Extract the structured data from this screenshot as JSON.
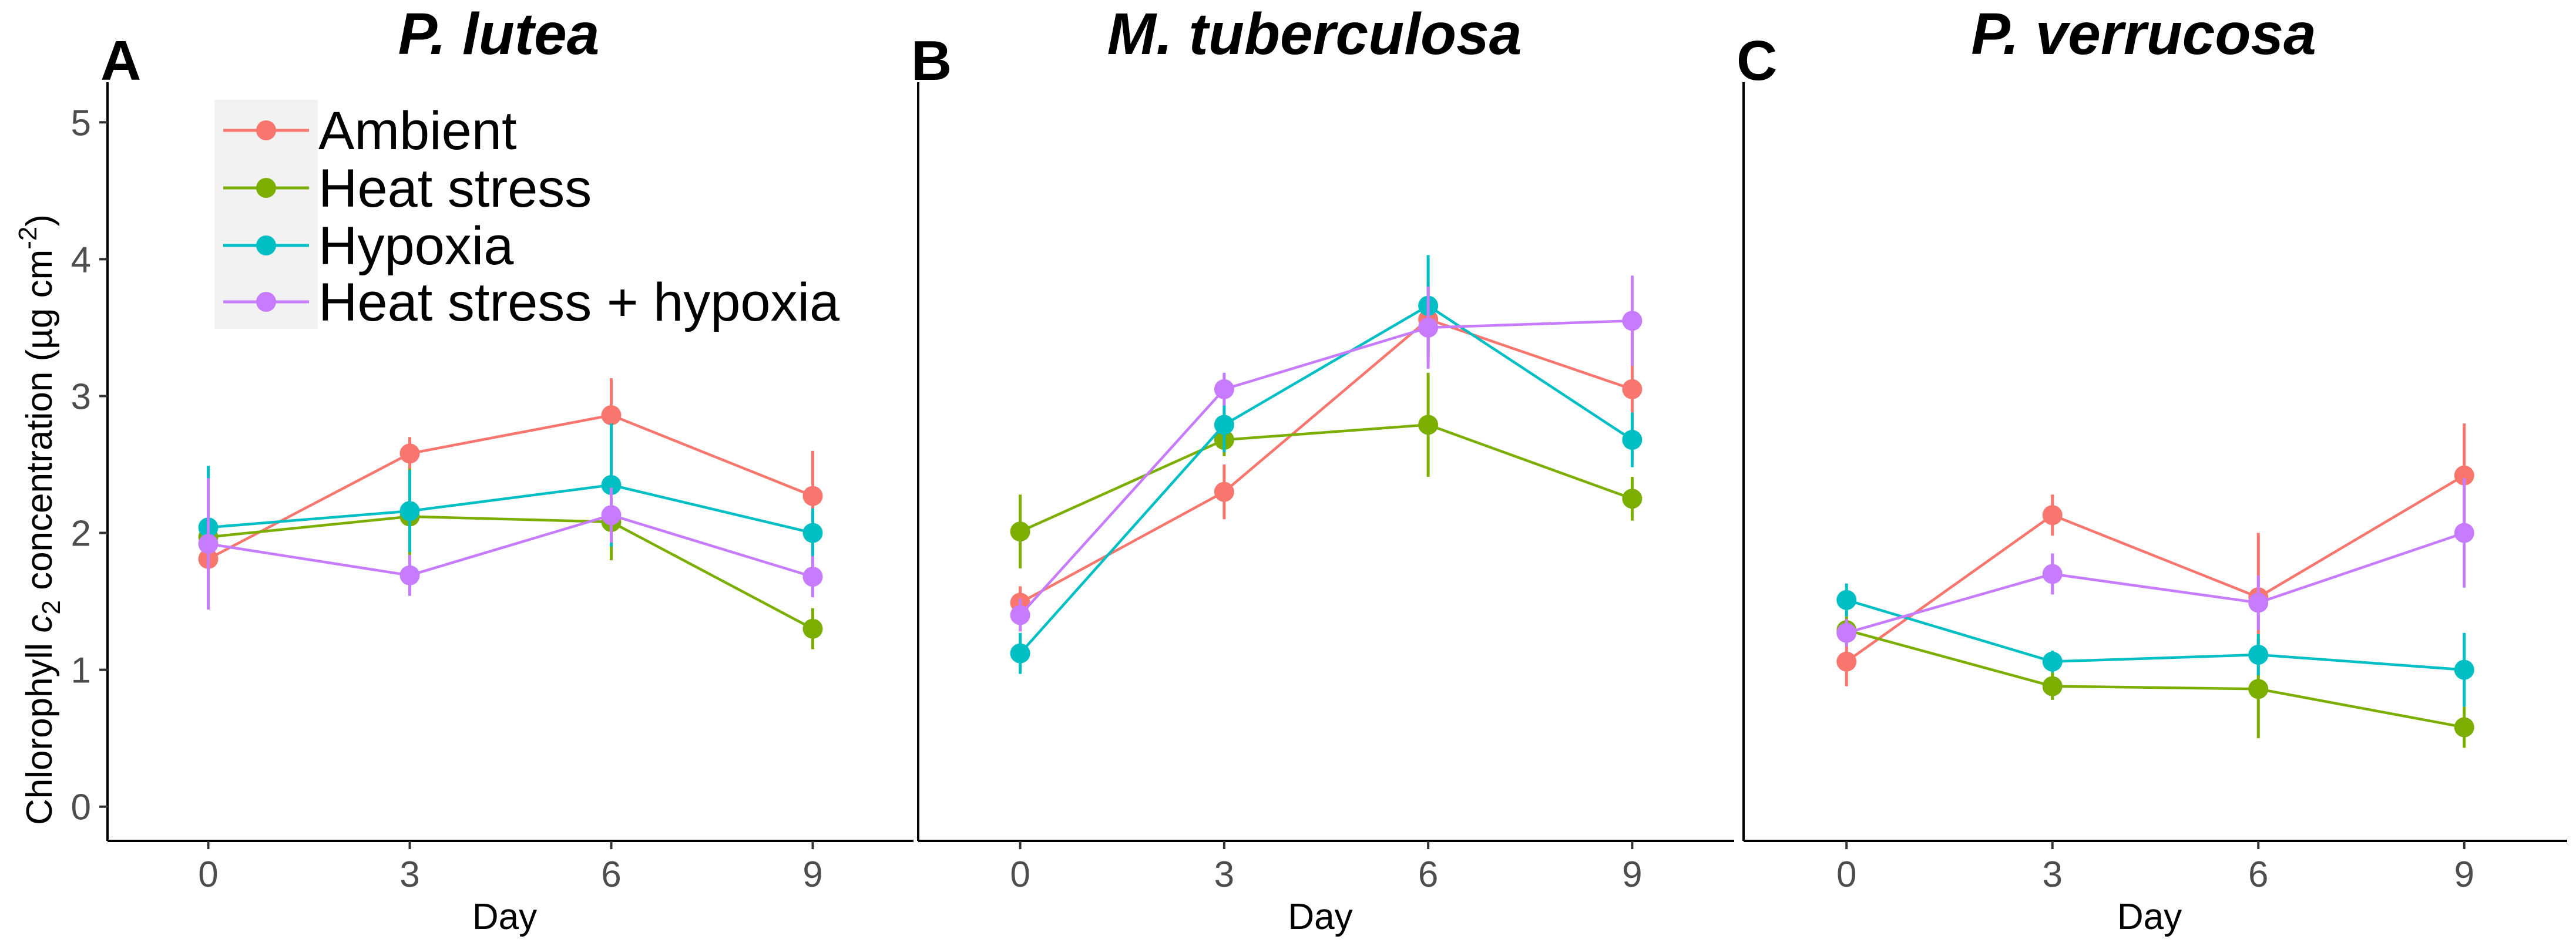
{
  "chart_data": {
    "type": "line",
    "ylabel_text": "Chlorophyll ",
    "ylabel_italic": "c",
    "ylabel_sub": "2",
    "ylabel_tail": " concentration (µg cm",
    "ylabel_sup": "-2",
    "ylabel_close": ")",
    "xlabel": "Day",
    "x": [
      0,
      3,
      6,
      9
    ],
    "xlim": [
      -1.5,
      10.5
    ],
    "ylim": [
      -0.25,
      5.25
    ],
    "yticks": [
      0,
      1,
      2,
      3,
      4,
      5
    ],
    "legend": {
      "position": "top-left",
      "entries": [
        "Ambient",
        "Heat stress",
        "Hypoxia",
        "Heat stress + hypoxia"
      ]
    },
    "colors": [
      "#F8766D",
      "#7CAE00",
      "#00BFC4",
      "#C77CFF"
    ],
    "panels": [
      {
        "letter": "A",
        "title": "P. lutea",
        "series": [
          {
            "name": "Ambient",
            "values": [
              1.81,
              2.58,
              2.86,
              2.27
            ],
            "errors": [
              0.2,
              0.12,
              0.27,
              0.33
            ]
          },
          {
            "name": "Heat stress",
            "values": [
              1.97,
              2.12,
              2.08,
              1.3
            ],
            "errors": [
              0.22,
              0.35,
              0.28,
              0.15
            ]
          },
          {
            "name": "Hypoxia",
            "values": [
              2.04,
              2.16,
              2.35,
              2.0
            ],
            "errors": [
              0.45,
              0.3,
              0.45,
              0.18
            ]
          },
          {
            "name": "Heat stress + hypoxia",
            "values": [
              1.92,
              1.69,
              2.13,
              1.68
            ],
            "errors": [
              0.48,
              0.15,
              0.2,
              0.15
            ]
          }
        ]
      },
      {
        "letter": "B",
        "title": "M. tuberculosa",
        "series": [
          {
            "name": "Ambient",
            "values": [
              1.49,
              2.3,
              3.56,
              3.05
            ],
            "errors": [
              0.12,
              0.2,
              0.3,
              0.5
            ]
          },
          {
            "name": "Heat stress",
            "values": [
              2.01,
              2.68,
              2.79,
              2.25
            ],
            "errors": [
              0.27,
              0.12,
              0.38,
              0.16
            ]
          },
          {
            "name": "Hypoxia",
            "values": [
              1.12,
              2.79,
              3.66,
              2.68
            ],
            "errors": [
              0.15,
              0.2,
              0.37,
              0.2
            ]
          },
          {
            "name": "Heat stress + hypoxia",
            "values": [
              1.4,
              3.05,
              3.5,
              3.55
            ],
            "errors": [
              0.12,
              0.12,
              0.3,
              0.33
            ]
          }
        ]
      },
      {
        "letter": "C",
        "title": "P. verrucosa",
        "series": [
          {
            "name": "Ambient",
            "values": [
              1.06,
              2.13,
              1.53,
              2.42
            ],
            "errors": [
              0.18,
              0.15,
              0.47,
              0.38
            ]
          },
          {
            "name": "Heat stress",
            "values": [
              1.29,
              0.88,
              0.86,
              0.58
            ],
            "errors": [
              0.1,
              0.1,
              0.36,
              0.15
            ]
          },
          {
            "name": "Hypoxia",
            "values": [
              1.51,
              1.06,
              1.11,
              1.0
            ],
            "errors": [
              0.12,
              0.08,
              0.15,
              0.27
            ]
          },
          {
            "name": "Heat stress + hypoxia",
            "values": [
              1.27,
              1.7,
              1.49,
              2.0
            ],
            "errors": [
              0.1,
              0.15,
              0.2,
              0.4
            ]
          }
        ]
      }
    ]
  }
}
